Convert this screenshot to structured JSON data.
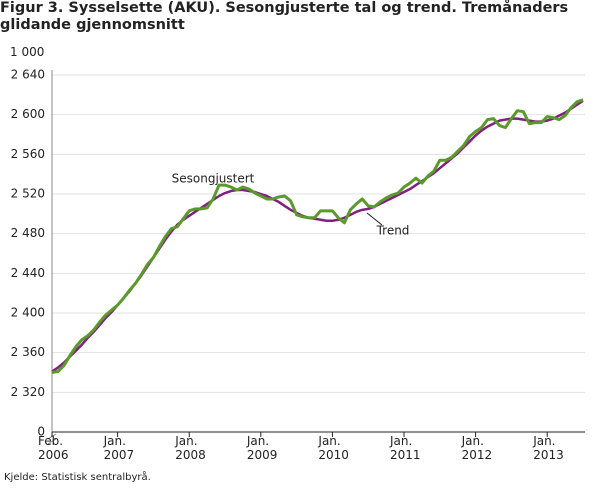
{
  "chart_data": {
    "type": "line",
    "title": "Figur 3. Sysselsette (AKU).  Sesongjusterte tal og trend. Tremånaders glidande gjennomsnitt",
    "y_unit": "1 000",
    "source": "Kjelde: Statistisk sentralbyrå.",
    "annotations": [
      "Sesongjustert",
      "Trend"
    ],
    "categories": [
      "Feb.\n2006",
      null,
      null,
      null,
      null,
      null,
      null,
      null,
      null,
      null,
      null,
      "Jan.\n2007",
      null,
      null,
      null,
      null,
      null,
      null,
      null,
      null,
      null,
      null,
      null,
      "Jan.\n2008",
      null,
      null,
      null,
      null,
      null,
      null,
      null,
      null,
      null,
      null,
      null,
      "Jan.\n2009",
      null,
      null,
      null,
      null,
      null,
      null,
      null,
      null,
      null,
      null,
      null,
      "Jan.\n2010",
      null,
      null,
      null,
      null,
      null,
      null,
      null,
      null,
      null,
      null,
      null,
      "Jan.\n2011",
      null,
      null,
      null,
      null,
      null,
      null,
      null,
      null,
      null,
      null,
      null,
      "Jan.\n2012",
      null,
      null,
      null,
      null,
      null,
      null,
      null,
      null,
      null,
      null,
      null,
      "Jan.\n2013",
      null,
      null,
      null,
      null,
      null,
      null
    ],
    "series": [
      {
        "name": "Trend",
        "color": "#80217f",
        "values": [
          2341,
          2345,
          2350,
          2356,
          2362,
          2368,
          2375,
          2381,
          2388,
          2395,
          2401,
          2408,
          2415,
          2422,
          2430,
          2438,
          2447,
          2456,
          2465,
          2474,
          2482,
          2489,
          2494,
          2498,
          2502,
          2506,
          2510,
          2514,
          2518,
          2521,
          2523,
          2524,
          2524,
          2523,
          2522,
          2520,
          2518,
          2515,
          2512,
          2508,
          2504,
          2501,
          2498,
          2496,
          2495,
          2494,
          2493,
          2493,
          2494,
          2496,
          2499,
          2502,
          2504,
          2505,
          2507,
          2510,
          2513,
          2516,
          2519,
          2522,
          2525,
          2529,
          2533,
          2537,
          2541,
          2546,
          2551,
          2556,
          2561,
          2567,
          2573,
          2579,
          2584,
          2588,
          2591,
          2594,
          2595,
          2596,
          2596,
          2595,
          2594,
          2593,
          2593,
          2594,
          2596,
          2599,
          2602,
          2606,
          2610,
          2614
        ]
      },
      {
        "name": "Sesongjustert",
        "color": "#5a9a2b",
        "values": [
          2340,
          2341,
          2347,
          2357,
          2366,
          2373,
          2377,
          2383,
          2391,
          2398,
          2403,
          2408,
          2415,
          2423,
          2430,
          2439,
          2449,
          2456,
          2467,
          2477,
          2485,
          2487,
          2495,
          2503,
          2505,
          2505,
          2506,
          2515,
          2529,
          2529,
          2527,
          2524,
          2527,
          2525,
          2521,
          2518,
          2515,
          2515,
          2517,
          2518,
          2513,
          2499,
          2497,
          2496,
          2496,
          2503,
          2503,
          2503,
          2496,
          2491,
          2504,
          2510,
          2515,
          2508,
          2507,
          2512,
          2516,
          2519,
          2521,
          2527,
          2531,
          2536,
          2531,
          2538,
          2543,
          2554,
          2554,
          2557,
          2563,
          2569,
          2578,
          2583,
          2587,
          2595,
          2596,
          2589,
          2587,
          2596,
          2604,
          2603,
          2591,
          2592,
          2592,
          2598,
          2597,
          2595,
          2599,
          2607,
          2613,
          2615
        ]
      }
    ],
    "ylim": [
      0,
      2640
    ],
    "yticks": [
      0,
      {
        "value": 2320,
        "label": "2 320"
      },
      {
        "value": 2360,
        "label": "2 360"
      },
      {
        "value": 2400,
        "label": "2 400"
      },
      {
        "value": 2440,
        "label": "2 440"
      },
      {
        "value": 2480,
        "label": "2 480"
      },
      {
        "value": 2520,
        "label": "2 520"
      },
      {
        "value": 2560,
        "label": "2 560"
      },
      {
        "value": 2600,
        "label": "2 600"
      },
      {
        "value": 2640,
        "label": "2 640"
      }
    ],
    "axis_break": true,
    "grid": true
  }
}
